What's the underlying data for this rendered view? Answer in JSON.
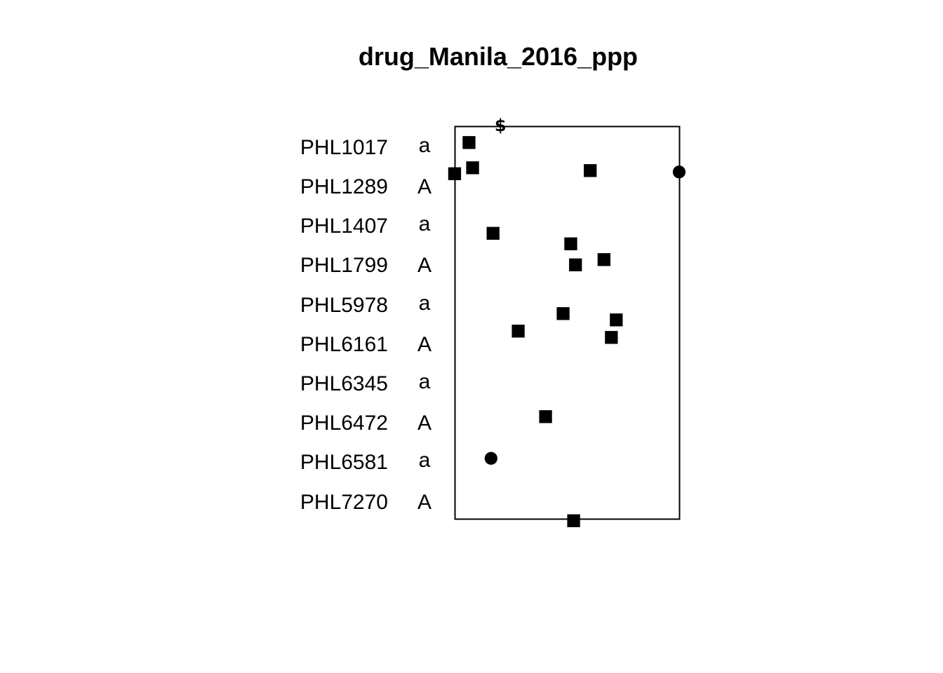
{
  "chart_data": {
    "type": "scatter",
    "title": "drug_Manila_2016_ppp",
    "legend": [
      {
        "label": "PHL1017",
        "symbol": "a"
      },
      {
        "label": "PHL1289",
        "symbol": "A"
      },
      {
        "label": "PHL1407",
        "symbol": "a"
      },
      {
        "label": "PHL1799",
        "symbol": "A"
      },
      {
        "label": "PHL5978",
        "symbol": "a"
      },
      {
        "label": "PHL6161",
        "symbol": "A"
      },
      {
        "label": "PHL6345",
        "symbol": "a"
      },
      {
        "label": "PHL6472",
        "symbol": "A"
      },
      {
        "label": "PHL6581",
        "symbol": "a"
      },
      {
        "label": "PHL7270",
        "symbol": "A"
      }
    ],
    "xlim": [
      0,
      1
    ],
    "ylim": [
      0,
      1
    ],
    "grid": false,
    "legend_placement": "left",
    "points": [
      {
        "x": 0.204,
        "y": 1.002,
        "mark": "$"
      },
      {
        "x": 0.064,
        "y": 0.962,
        "mark": "■"
      },
      {
        "x": 0.08,
        "y": 0.897,
        "mark": "■"
      },
      {
        "x": 0.0,
        "y": 0.882,
        "mark": "■"
      },
      {
        "x": 0.604,
        "y": 0.89,
        "mark": "■"
      },
      {
        "x": 1.0,
        "y": 0.887,
        "mark": "●"
      },
      {
        "x": 0.171,
        "y": 0.73,
        "mark": "■"
      },
      {
        "x": 0.517,
        "y": 0.704,
        "mark": "■"
      },
      {
        "x": 0.665,
        "y": 0.663,
        "mark": "■"
      },
      {
        "x": 0.538,
        "y": 0.65,
        "mark": "■"
      },
      {
        "x": 0.483,
        "y": 0.526,
        "mark": "■"
      },
      {
        "x": 0.72,
        "y": 0.51,
        "mark": "■"
      },
      {
        "x": 0.283,
        "y": 0.481,
        "mark": "■"
      },
      {
        "x": 0.698,
        "y": 0.465,
        "mark": "■"
      },
      {
        "x": 0.405,
        "y": 0.263,
        "mark": "■"
      },
      {
        "x": 0.162,
        "y": 0.157,
        "mark": "●"
      },
      {
        "x": 0.53,
        "y": -0.002,
        "mark": "■"
      }
    ]
  }
}
